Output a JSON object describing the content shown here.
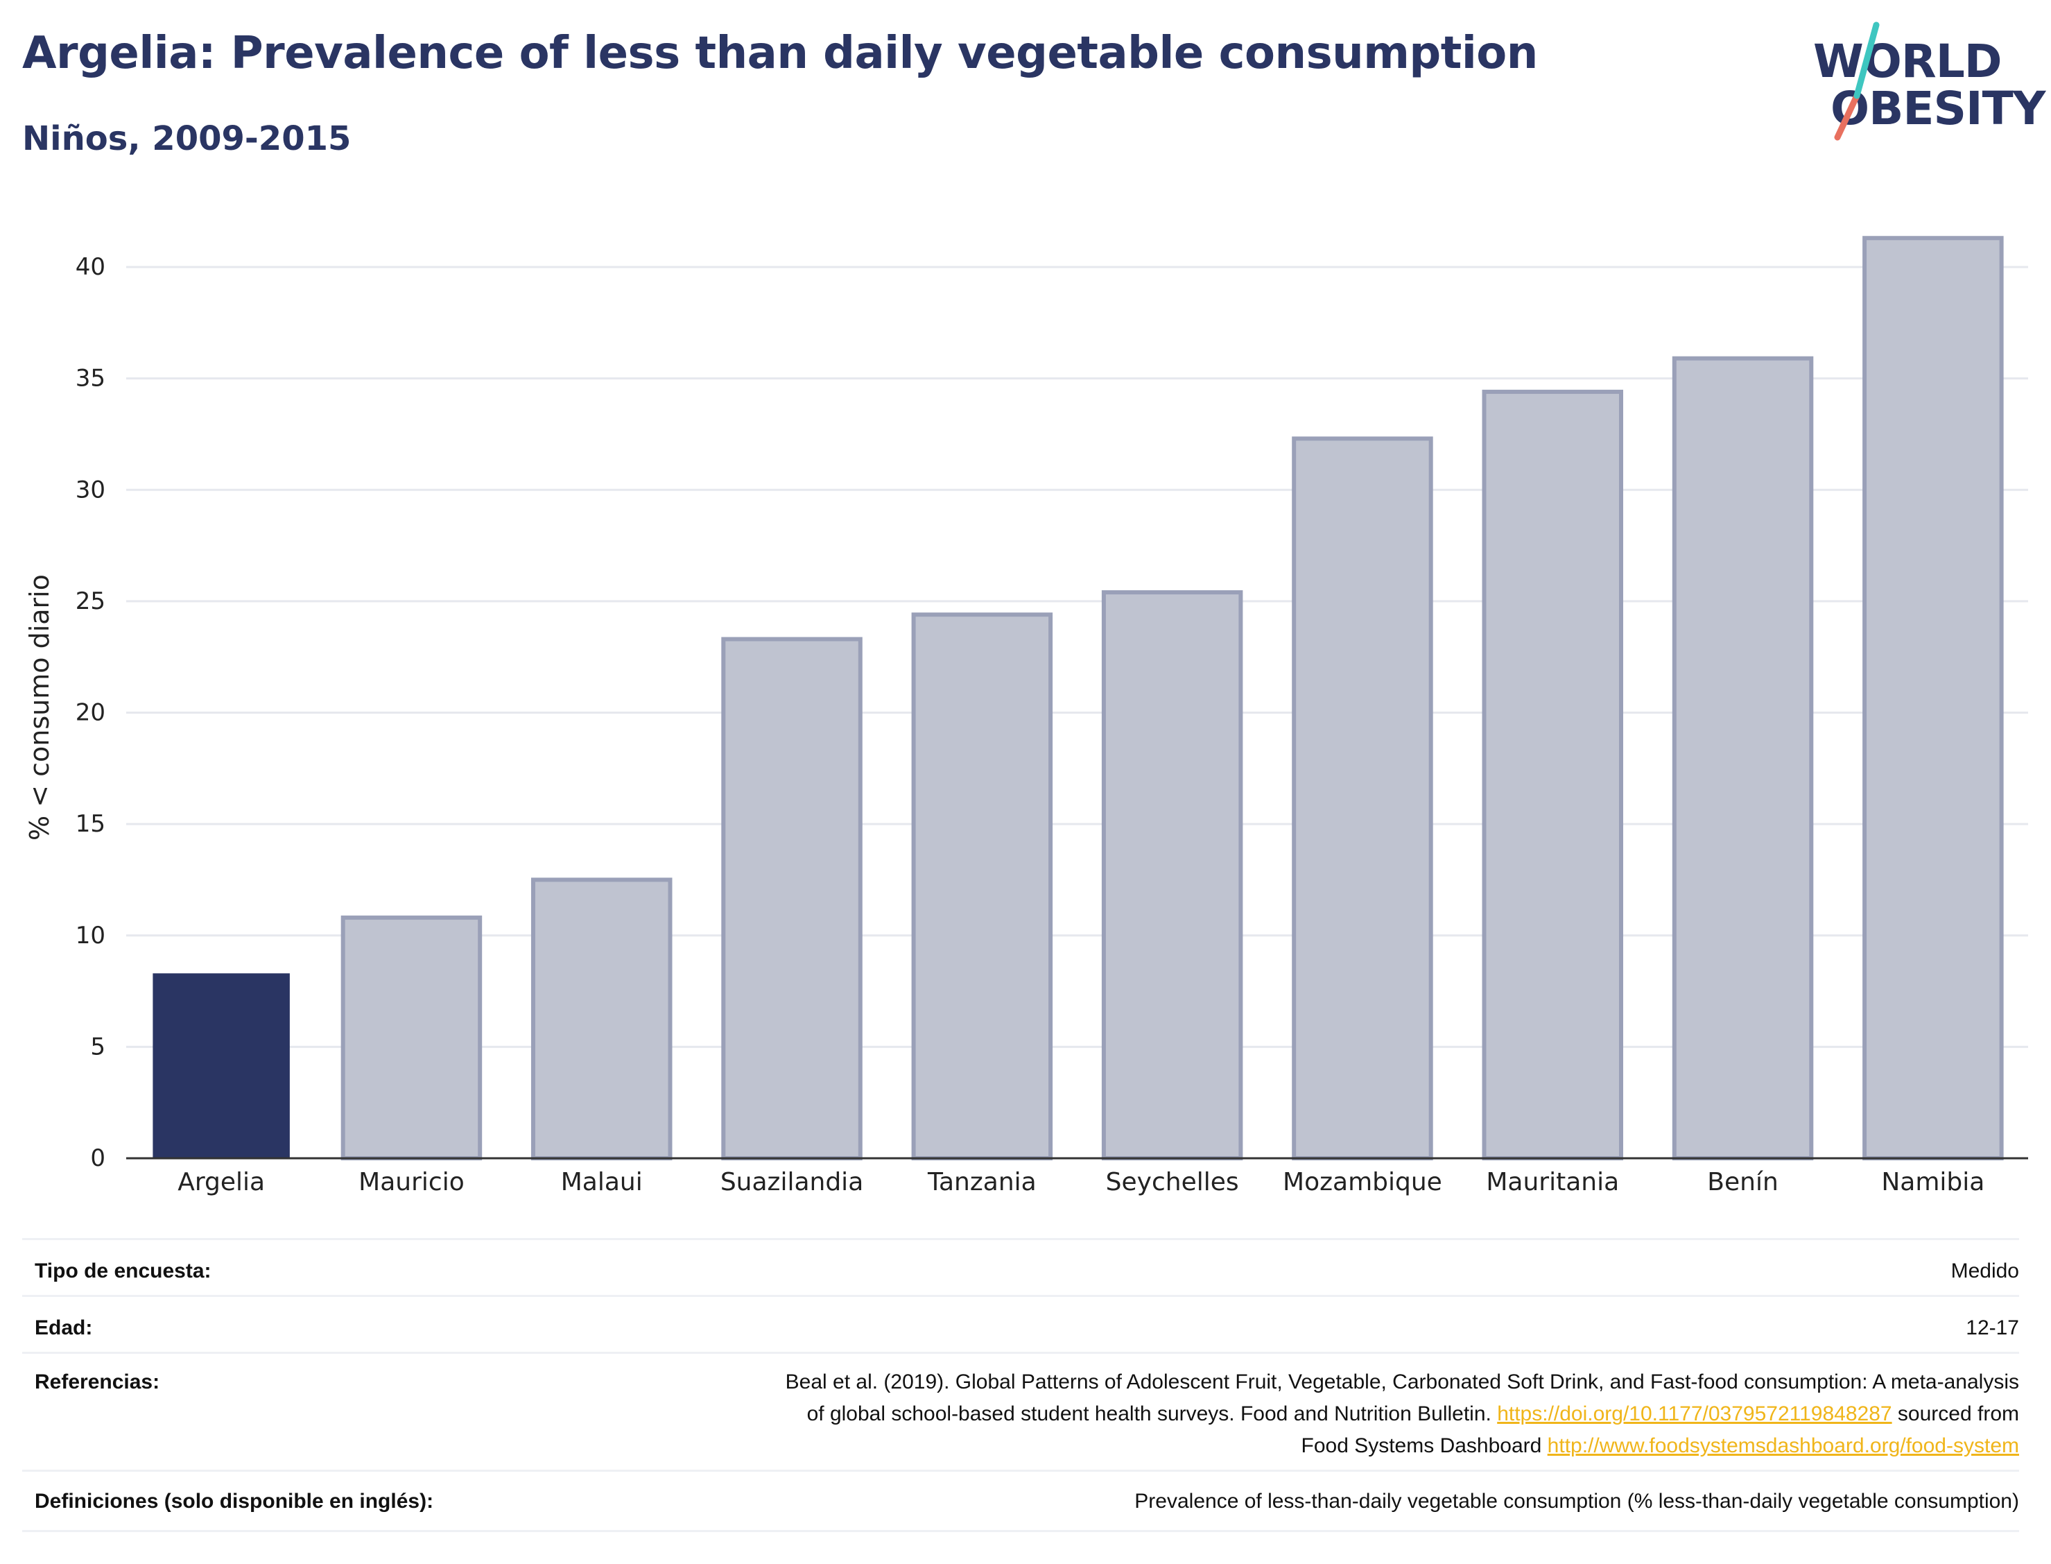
{
  "header": {
    "title": "Argelia: Prevalence of less than daily vegetable consumption",
    "subtitle": "Niños, 2009-2015"
  },
  "logo": {
    "line1": "WORLD",
    "line2": "OBESITY",
    "slash_color_top": "#3ec6c0",
    "slash_color_bottom": "#e8705f"
  },
  "colors": {
    "highlight_bar": "#2a3563",
    "other_bar_fill": "#bfc3d0",
    "other_bar_edge": "#9aa0b8",
    "link": "#f0b51a"
  },
  "chart_data": {
    "type": "bar",
    "categories": [
      "Argelia",
      "Mauricio",
      "Malaui",
      "Suazilandia",
      "Tanzania",
      "Seychelles",
      "Mozambique",
      "Mauritania",
      "Benín",
      "Namibia"
    ],
    "values": [
      8.3,
      10.8,
      12.5,
      23.3,
      24.4,
      25.4,
      32.3,
      34.4,
      35.9,
      41.3
    ],
    "highlight": "Argelia",
    "ylabel": "% < consumo diario",
    "ylim": [
      0,
      42
    ],
    "yticks": [
      0,
      5,
      10,
      15,
      20,
      25,
      30,
      35,
      40
    ],
    "grid": true
  },
  "info": {
    "survey_label": "Tipo de encuesta:",
    "survey_value": "Medido",
    "age_label": "Edad:",
    "age_value": "12-17",
    "ref_label": "Referencias:",
    "ref_line1": "Beal et al. (2019). Global Patterns of Adolescent Fruit, Vegetable, Carbonated Soft Drink, and Fast-food consumption: A meta-analysis",
    "ref_line2a": "of global school-based student health surveys. Food and Nutrition Bulletin. ",
    "ref_link1": "https://doi.org/10.1177/0379572119848287",
    "ref_line2b": " sourced from",
    "ref_line3a": "Food Systems Dashboard ",
    "ref_link2": "http://www.foodsystemsdashboard.org/food-system",
    "def_label": "Definiciones (solo disponible en inglés):",
    "def_value": "Prevalence of less-than-daily vegetable consumption (% less-than-daily vegetable consumption)"
  }
}
